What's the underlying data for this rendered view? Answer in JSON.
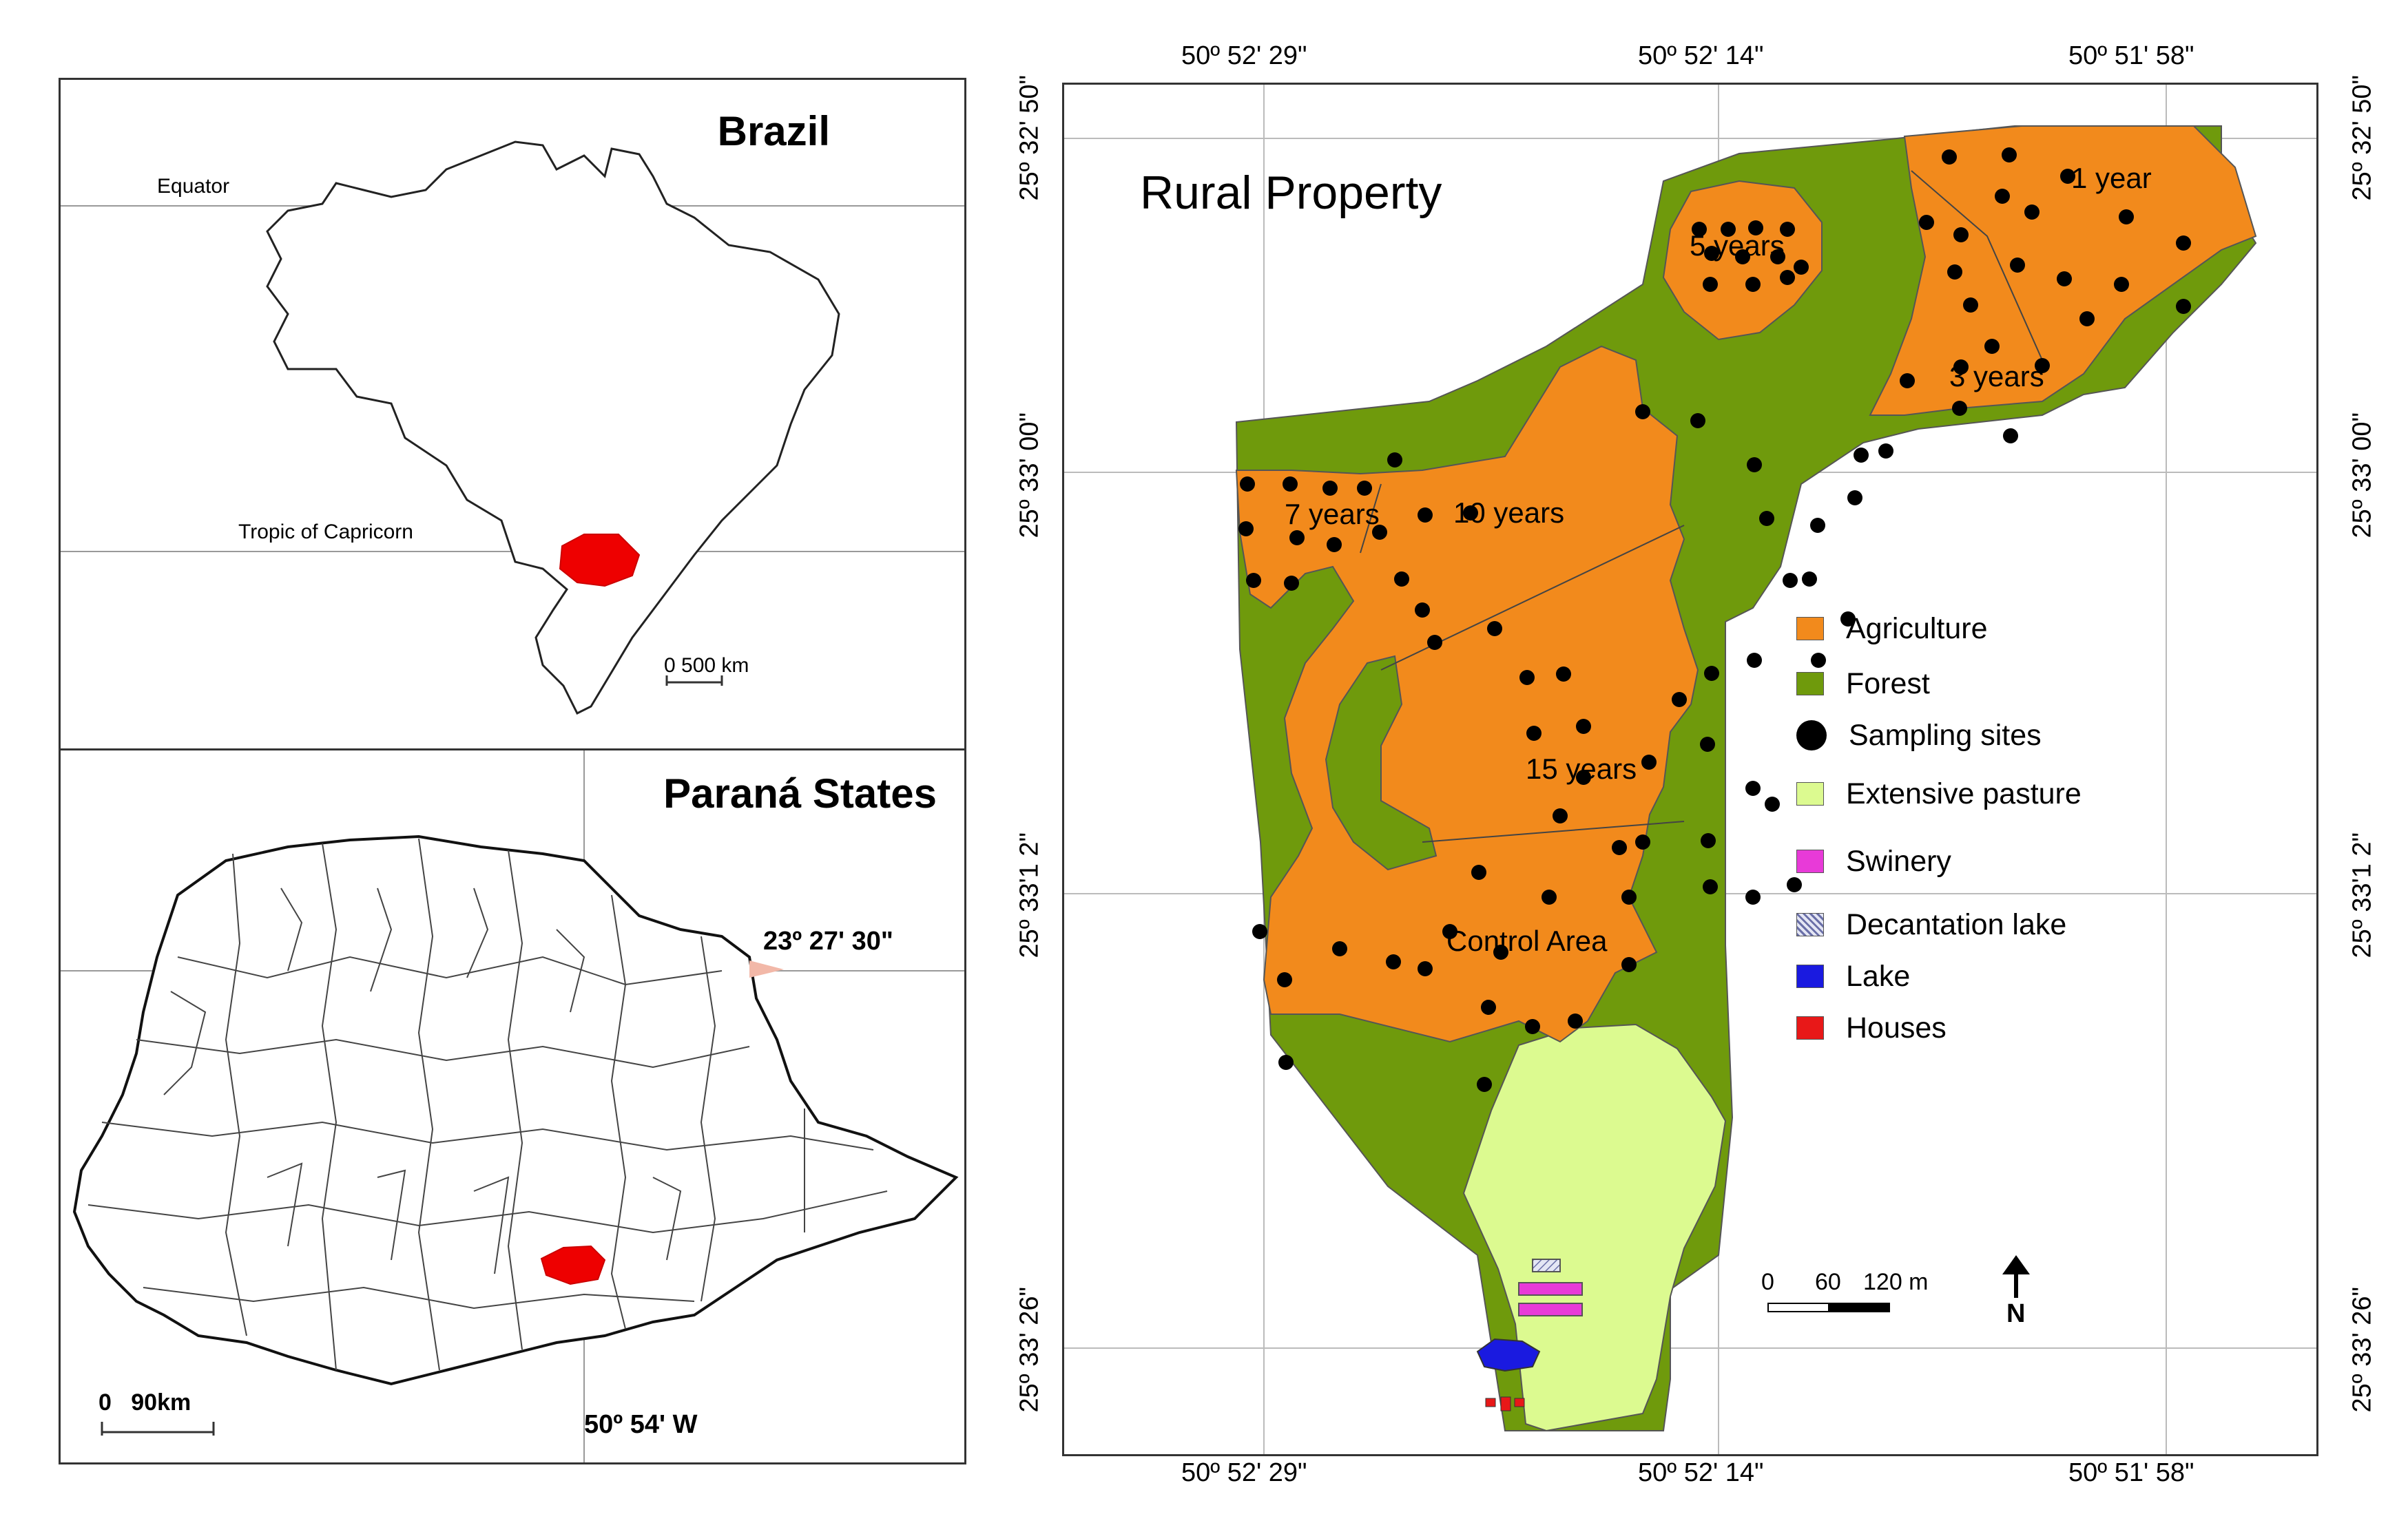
{
  "brazil": {
    "title": "Brazil",
    "equator_label": "Equator",
    "tropic_label": "Tropic of Capricorn",
    "scale_label": "0  500 km"
  },
  "parana": {
    "title": "Paraná States",
    "lat_label": "23º 27' 30\"",
    "lon_label": "50º 54' W",
    "scale_label": "0   90km"
  },
  "property": {
    "title": "Rural Property",
    "top_coords": [
      "50º 52' 29\"",
      "50º 52' 14\"",
      "50º 51' 58\""
    ],
    "bottom_coords": [
      "50º 52' 29\"",
      "50º 52' 14\"",
      "50º 51' 58\""
    ],
    "left_coords": [
      "25º 32' 50\"",
      "25º 33' 00\"",
      "25º 33'1 2\"",
      "25º 33' 26\""
    ],
    "right_coords": [
      "25º 32' 50\"",
      "25º 33' 00\"",
      "25º 33'1 2\"",
      "25º 33' 26\""
    ],
    "areas": {
      "one_year": "1 year",
      "three_years": "3 years",
      "five_years": "5 years",
      "seven_years": "7 years",
      "ten_years": "10 years",
      "fifteen_years": "15 years",
      "control": "Control Area"
    },
    "scale": {
      "z": "0",
      "mid": "60",
      "end": "120 m"
    },
    "north": "N"
  },
  "legend": [
    {
      "label": "Agriculture",
      "color": "#f28a1c",
      "kind": "area"
    },
    {
      "label": "Forest",
      "color": "#6f9a0c",
      "kind": "area"
    },
    {
      "label": "Sampling sites",
      "color": "#000000",
      "kind": "dot"
    },
    {
      "label": "Extensive pasture",
      "color": "#dcfa90",
      "kind": "area"
    },
    {
      "label": "Swinery",
      "color": "#e83ad8",
      "kind": "area"
    },
    {
      "label": "Decantation lake",
      "color": "#c8cce8",
      "kind": "hatch"
    },
    {
      "label": "Lake",
      "color": "#1a1ae0",
      "kind": "area"
    },
    {
      "label": "Houses",
      "color": "#e81818",
      "kind": "area"
    }
  ]
}
